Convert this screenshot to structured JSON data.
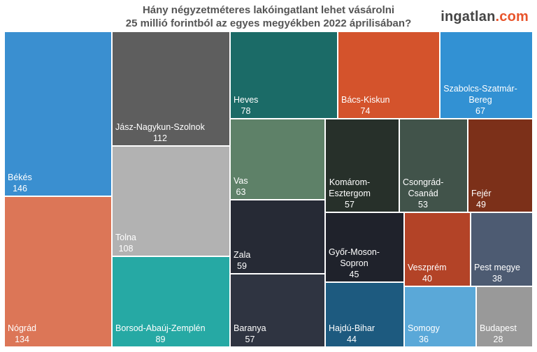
{
  "header": {
    "title_line1": "Hány négyzetméteres lakóingatlant lehet vásárolni",
    "title_line2": "25 millió forintból az egyes megyékben 2022 áprilisában?"
  },
  "logo": {
    "name": "ingatlan",
    "dot": ".",
    "tld": "com"
  },
  "chart_data": {
    "type": "treemap",
    "title": "Hány négyzetméteres lakóingatlant lehet vásárolni 25 millió forintból az egyes megyékben 2022 áprilisában?",
    "items": [
      {
        "name": "Békés",
        "value": 146,
        "color": "#3a8fd0"
      },
      {
        "name": "Nógrád",
        "value": 134,
        "color": "#dc7657"
      },
      {
        "name": "Jász-Nagykun-Szolnok",
        "value": 112,
        "color": "#5e5e5e"
      },
      {
        "name": "Tolna",
        "value": 108,
        "color": "#b2b2b2"
      },
      {
        "name": "Borsod-Abaúj-Zemplén",
        "value": 89,
        "color": "#26a9a4"
      },
      {
        "name": "Heves",
        "value": 78,
        "color": "#1b6b67"
      },
      {
        "name": "Bács-Kiskun",
        "value": 74,
        "color": "#d4532c"
      },
      {
        "name": "Szabolcs-Szatmár-Bereg",
        "value": 67,
        "color": "#3291d3"
      },
      {
        "name": "Vas",
        "value": 63,
        "color": "#5e8168"
      },
      {
        "name": "Zala",
        "value": 59,
        "color": "#262a35"
      },
      {
        "name": "Baranya",
        "value": 57,
        "color": "#2f3441"
      },
      {
        "name": "Komárom-Esztergom",
        "value": 57,
        "color": "#27302a"
      },
      {
        "name": "Csongrád-Csanád",
        "value": 53,
        "color": "#41534a"
      },
      {
        "name": "Fejér",
        "value": 49,
        "color": "#7c3019"
      },
      {
        "name": "Győr-Moson-Sopron",
        "value": 45,
        "color": "#1f222b"
      },
      {
        "name": "Hajdú-Bihar",
        "value": 44,
        "color": "#1d5a7f"
      },
      {
        "name": "Veszprém",
        "value": 40,
        "color": "#b34327"
      },
      {
        "name": "Pest megye",
        "value": 38,
        "color": "#4d5b72"
      },
      {
        "name": "Somogy",
        "value": 36,
        "color": "#5aa8d8"
      },
      {
        "name": "Budapest",
        "value": 28,
        "color": "#999999"
      }
    ]
  }
}
